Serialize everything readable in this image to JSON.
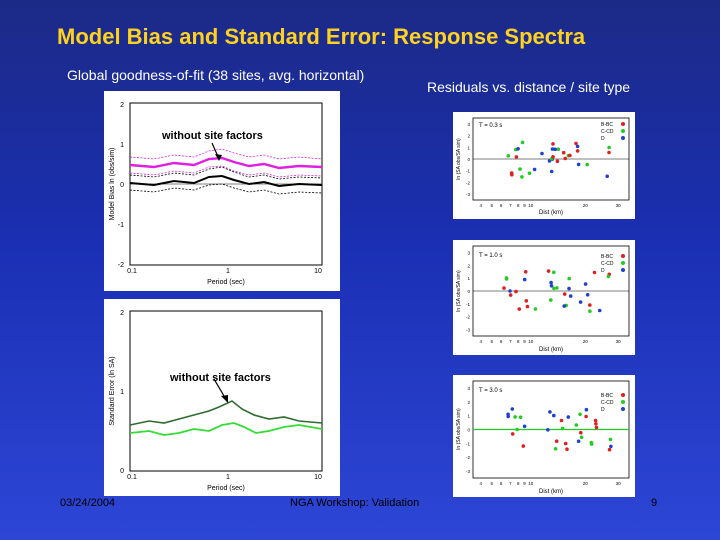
{
  "slide": {
    "title": "Model Bias and Standard Error:  Response Spectra",
    "left_subtitle": "Global goodness-of-fit (38 sites, avg. horizontal)",
    "right_subtitle": "Residuals vs. distance / site type"
  },
  "bias_plot": {
    "overlay_label": "without site factors",
    "ylabel": "Model Bias ln (obs/sim)",
    "xlabel": "Period (sec)",
    "yticks": [
      "2",
      "1",
      "0",
      "-1",
      "-2"
    ],
    "xticks": [
      "0.1",
      "1",
      "10"
    ]
  },
  "stderr_plot": {
    "overlay_label": "without site factors",
    "ylabel": "Standard Error (ln SA)",
    "xlabel": "Period (sec)",
    "yticks": [
      "2",
      "1",
      "0"
    ],
    "xticks": [
      "0.1",
      "1",
      "10"
    ]
  },
  "residual_plots": [
    {
      "period_label": "T = 0.3 s",
      "ylabel": "ln (SA obs/SA sim)",
      "xlabel": "Dist (km)",
      "yticks": [
        "3",
        "2",
        "1",
        "0",
        "-1",
        "-2",
        "-3"
      ],
      "xticks": [
        "4",
        "5",
        "6",
        "7",
        "8",
        "9",
        "10",
        "20",
        "30"
      ],
      "legend": [
        "B-BC",
        "C-CD",
        "D"
      ]
    },
    {
      "period_label": "T = 1.0 s",
      "ylabel": "ln (SA obs/SA sim)",
      "xlabel": "Dist (km)",
      "yticks": [
        "3",
        "2",
        "1",
        "0",
        "-1",
        "-2",
        "-3"
      ],
      "xticks": [
        "4",
        "5",
        "6",
        "7",
        "8",
        "9",
        "10",
        "20",
        "30"
      ],
      "legend": [
        "B-BC",
        "C-CD",
        "D"
      ]
    },
    {
      "period_label": "T = 3.0 s",
      "ylabel": "ln (SA obs/SA sim)",
      "xlabel": "Dist (km)",
      "yticks": [
        "3",
        "2",
        "1",
        "0",
        "-1",
        "-2",
        "-3"
      ],
      "xticks": [
        "4",
        "5",
        "6",
        "7",
        "8",
        "9",
        "10",
        "20",
        "30"
      ],
      "legend": [
        "B-BC",
        "C-CD",
        "D"
      ]
    }
  ],
  "footer": {
    "date": "03/24/2004",
    "center": "NGA Workshop: Validation",
    "page": "9"
  },
  "colors": {
    "background": "#1a2fb3",
    "title": "#ffd21f",
    "bias_line": "#e020e0",
    "stderr_line": "#3fa84a",
    "site_b": "#e02020",
    "site_c": "#22cc22",
    "site_d": "#2040d0"
  }
}
